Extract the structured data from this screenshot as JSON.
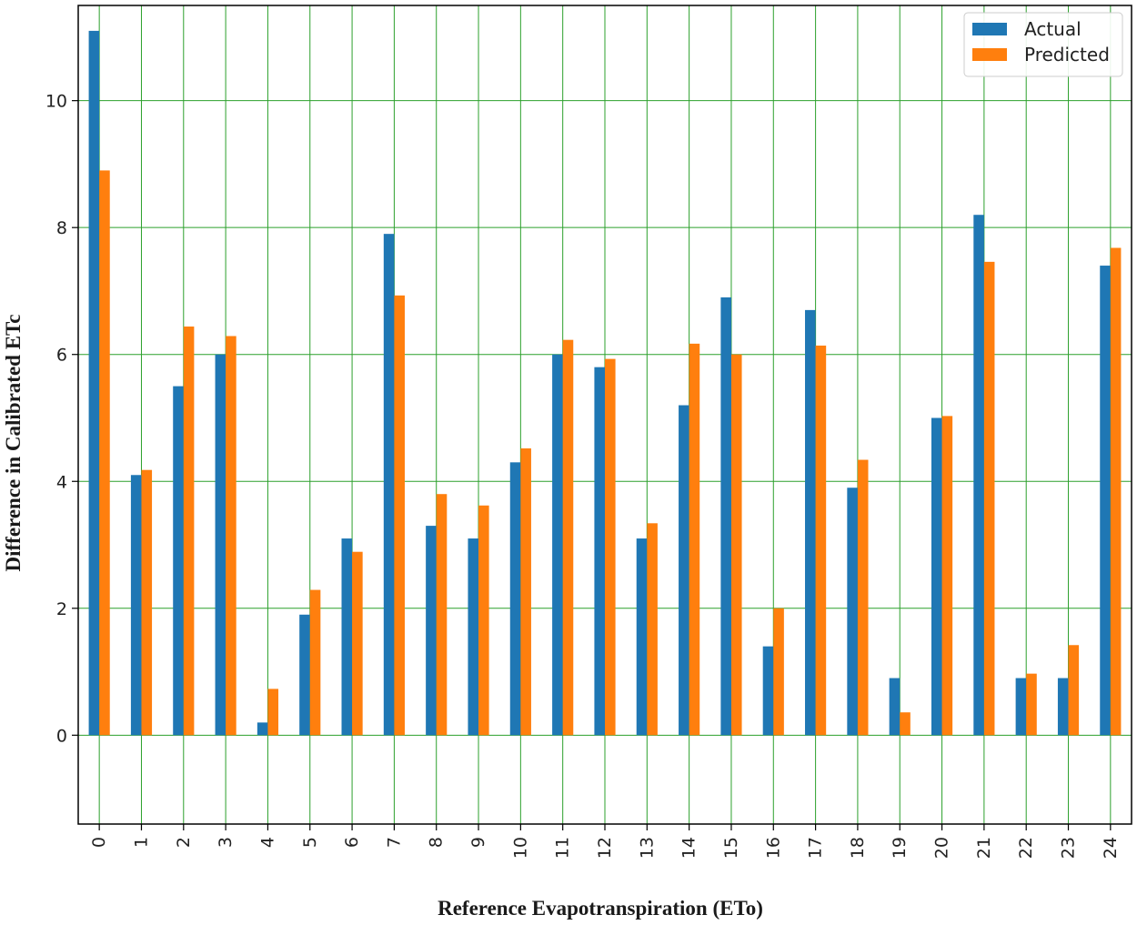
{
  "chart_data": {
    "type": "bar",
    "xlabel": "Reference Evapotranspiration (ETo)",
    "ylabel": "Difference in Calibrated ETc",
    "categories": [
      "0",
      "1",
      "2",
      "3",
      "4",
      "5",
      "6",
      "7",
      "8",
      "9",
      "10",
      "11",
      "12",
      "13",
      "14",
      "15",
      "16",
      "17",
      "18",
      "19",
      "20",
      "21",
      "22",
      "23",
      "24"
    ],
    "series": [
      {
        "name": "Actual",
        "color": "#1f77b4",
        "values": [
          11.1,
          4.1,
          5.5,
          6.0,
          0.2,
          1.9,
          3.1,
          7.9,
          3.3,
          3.1,
          4.3,
          6.0,
          5.8,
          3.1,
          5.2,
          6.9,
          1.4,
          6.7,
          3.9,
          0.9,
          5.0,
          8.2,
          0.9,
          0.9,
          7.4
        ]
      },
      {
        "name": "Predicted",
        "color": "#ff7f0e",
        "values": [
          8.9,
          4.18,
          6.44,
          6.29,
          0.73,
          2.29,
          2.89,
          6.93,
          3.8,
          3.62,
          4.52,
          6.23,
          5.93,
          3.34,
          6.17,
          6.0,
          2.0,
          6.14,
          4.34,
          0.36,
          5.03,
          7.46,
          0.97,
          1.42,
          7.68
        ]
      }
    ],
    "ylim": [
      -1.4,
      11.5
    ],
    "yticks": [
      "0",
      "2",
      "4",
      "6",
      "8",
      "10"
    ],
    "grid": true,
    "grid_color": "#2ca02c",
    "legend_position": "top-right"
  }
}
